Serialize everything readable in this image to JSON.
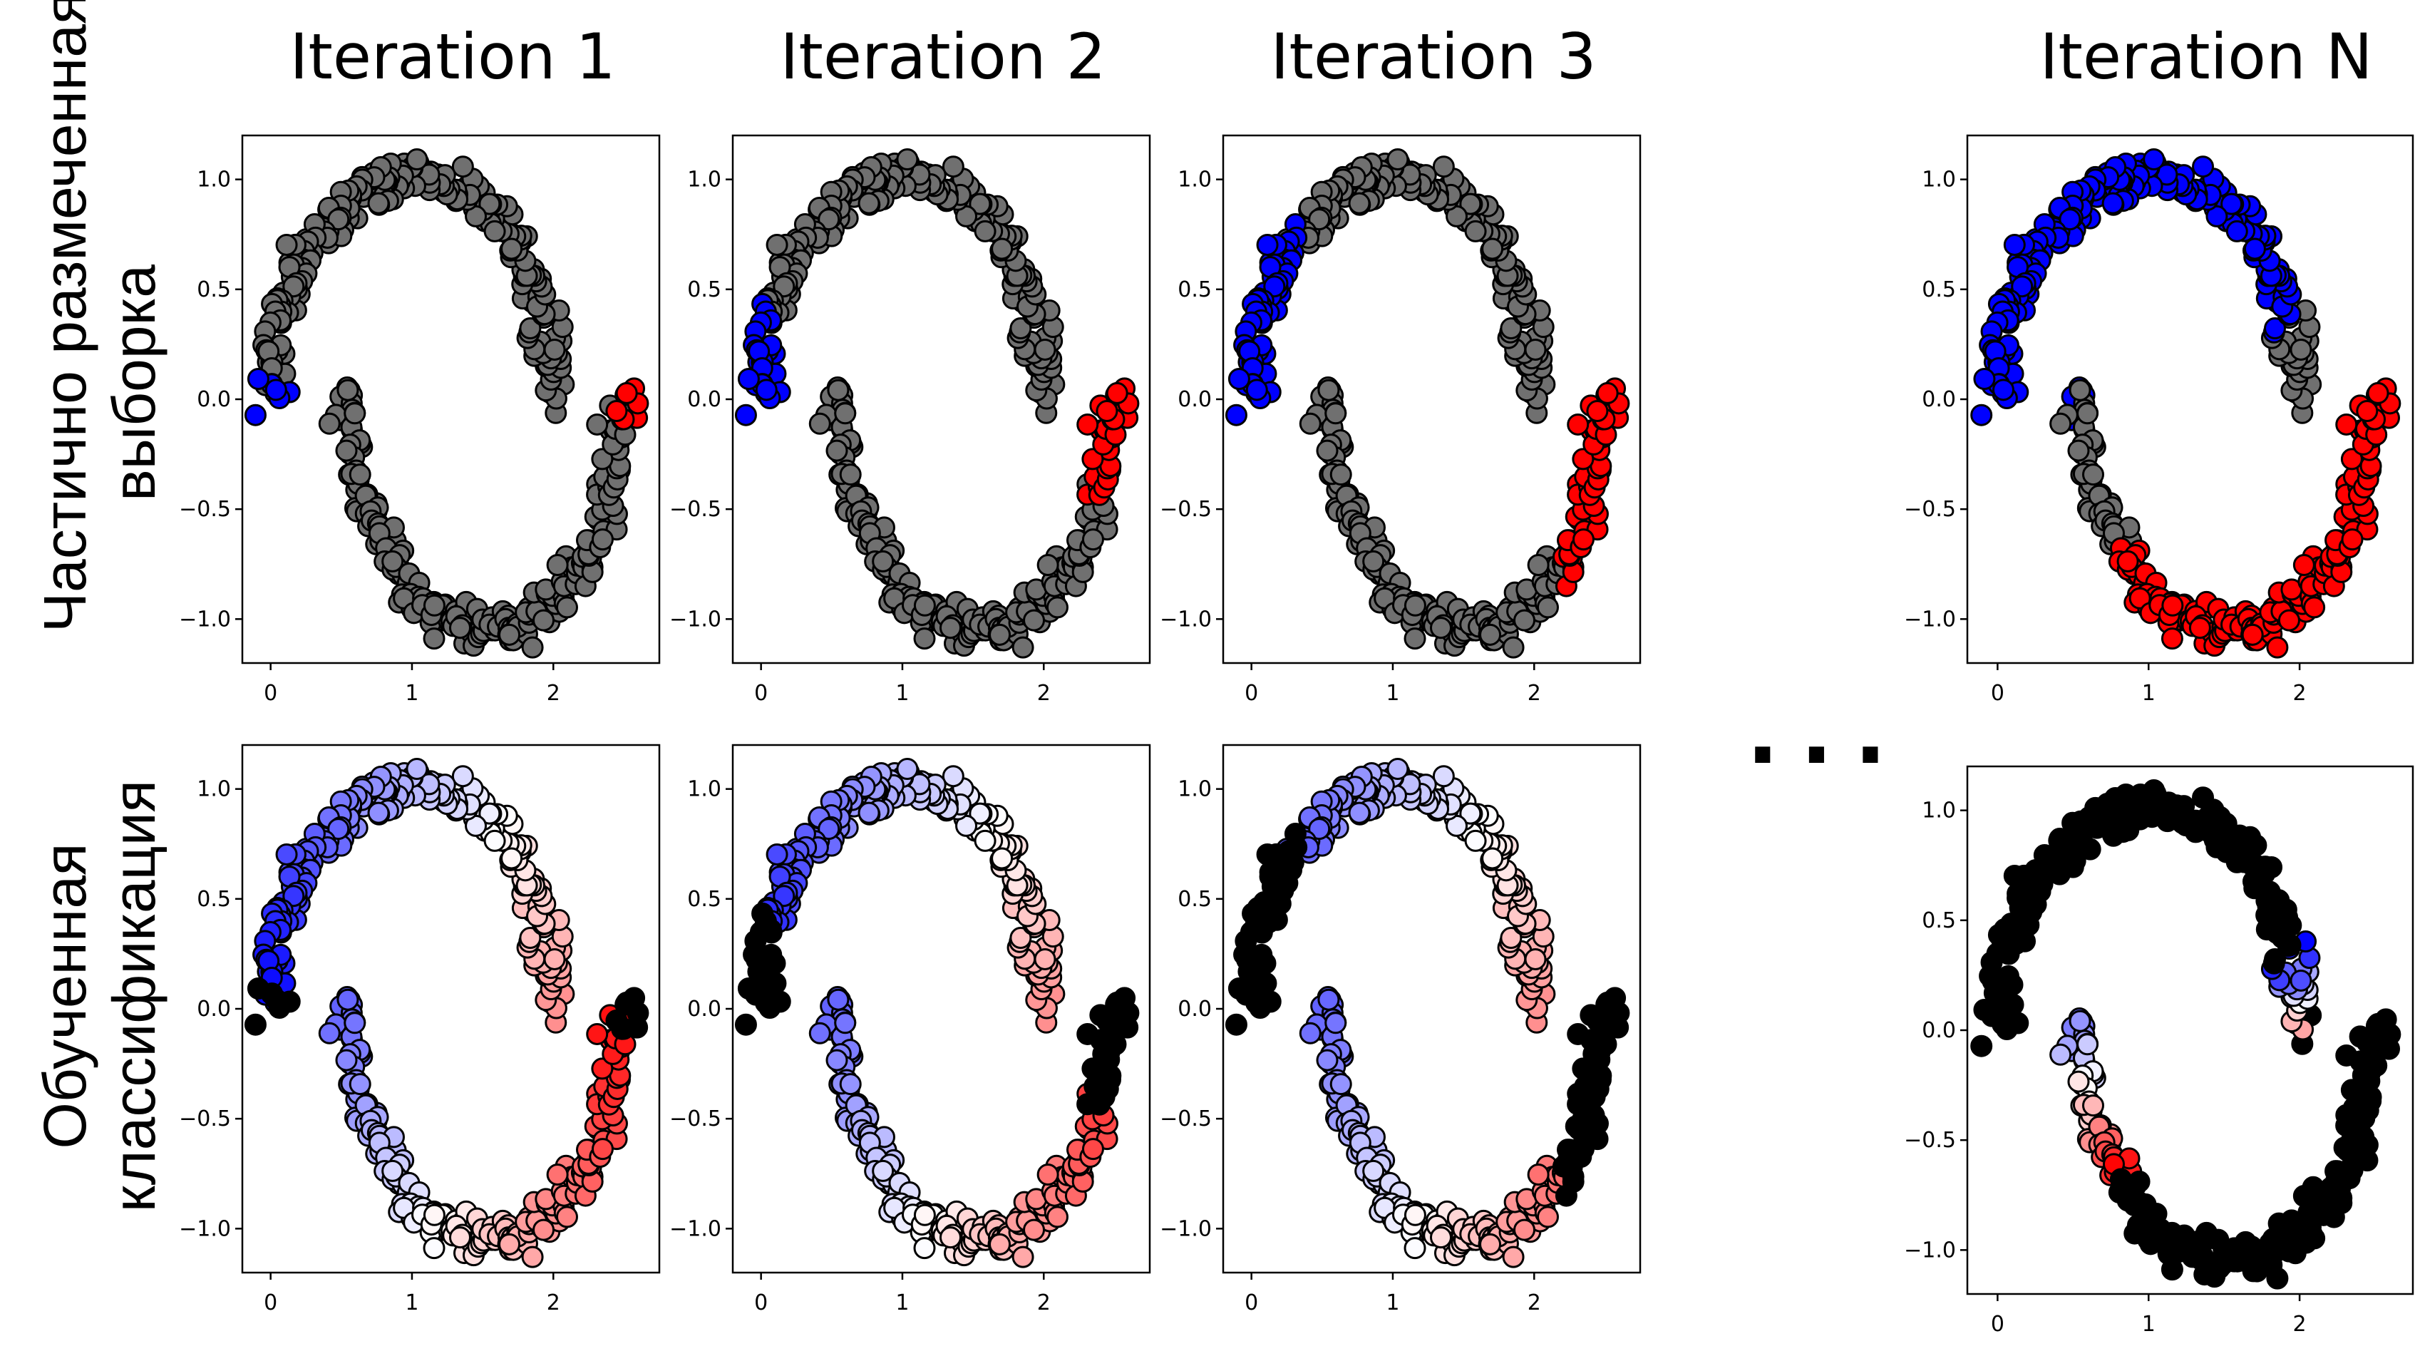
{
  "column_titles": [
    "Iteration 1",
    "Iteration 2",
    "Iteration 3",
    "Iteration N"
  ],
  "row_labels": {
    "top_line1": "Частично размеченная",
    "top_line2": "выборка",
    "bottom_line1": "Обученная",
    "bottom_line2": "классификация"
  },
  "ellipsis": "...",
  "colors": {
    "unlabeled": "#707070",
    "class_blue": "#0000ff",
    "class_red": "#ff0000",
    "uncertain": "#000000",
    "marker_edge": "#000000"
  },
  "chart_data": [
    {
      "type": "scatter",
      "row": "labeled",
      "iteration": "Iteration 1",
      "xlim": [
        -0.2,
        2.75
      ],
      "ylim": [
        -1.2,
        1.2
      ],
      "xticks": [
        "0",
        "1",
        "2"
      ],
      "yticks": [
        "1.0",
        "0.5",
        "0.0",
        "−0.5",
        "−1.0"
      ],
      "grid": false,
      "upper_moon": {
        "blue_t": [
          0.97,
          1.0
        ],
        "red_t": []
      },
      "lower_moon": {
        "blue_t": [],
        "red_t": [
          0.97,
          1.0
        ]
      },
      "coloring": "labels"
    },
    {
      "type": "scatter",
      "row": "labeled",
      "iteration": "Iteration 2",
      "xlim": [
        -0.2,
        2.75
      ],
      "ylim": [
        -1.2,
        1.2
      ],
      "xticks": [
        "0",
        "1",
        "2"
      ],
      "yticks": [
        "1.0",
        "0.5",
        "0.0",
        "−0.5",
        "−1.0"
      ],
      "grid": false,
      "upper_moon": {
        "blue_t": [
          0.88,
          1.0
        ],
        "red_t": []
      },
      "lower_moon": {
        "blue_t": [],
        "red_t": [
          0.86,
          1.0
        ]
      },
      "coloring": "labels"
    },
    {
      "type": "scatter",
      "row": "labeled",
      "iteration": "Iteration 3",
      "xlim": [
        -0.2,
        2.75
      ],
      "ylim": [
        -1.2,
        1.2
      ],
      "xticks": [
        "0",
        "1",
        "2"
      ],
      "yticks": [
        "1.0",
        "0.5",
        "0.0",
        "−0.5",
        "−1.0"
      ],
      "grid": false,
      "upper_moon": {
        "blue_t": [
          0.74,
          1.0
        ],
        "red_t": []
      },
      "lower_moon": {
        "blue_t": [],
        "red_t": [
          0.74,
          1.0
        ]
      },
      "coloring": "labels"
    },
    {
      "type": "scatter",
      "row": "labeled",
      "iteration": "Iteration N",
      "xlim": [
        -0.2,
        2.75
      ],
      "ylim": [
        -1.2,
        1.2
      ],
      "xticks": [
        "0",
        "1",
        "2"
      ],
      "yticks": [
        "1.0",
        "0.5",
        "0.0",
        "−0.5",
        "−1.0"
      ],
      "grid": false,
      "upper_moon": {
        "blue_t": [
          0.12,
          1.0
        ],
        "red_t": []
      },
      "lower_moon": {
        "blue_t": [
          0.0,
          0.02
        ],
        "red_t": [
          0.24,
          1.0
        ]
      },
      "coloring": "labels"
    },
    {
      "type": "scatter",
      "row": "classified",
      "iteration": "Iteration 1",
      "xlim": [
        -0.2,
        2.75
      ],
      "ylim": [
        -1.2,
        1.2
      ],
      "xticks": [
        "0",
        "1",
        "2"
      ],
      "yticks": [
        "1.0",
        "0.5",
        "0.0",
        "−0.5",
        "−1.0"
      ],
      "grid": false,
      "black_t": {
        "upper": [
          0.97,
          1.0
        ],
        "lower": [
          0.97,
          1.0
        ]
      },
      "coloring": "gradient"
    },
    {
      "type": "scatter",
      "row": "classified",
      "iteration": "Iteration 2",
      "xlim": [
        -0.2,
        2.75
      ],
      "ylim": [
        -1.2,
        1.2
      ],
      "xticks": [
        "0",
        "1",
        "2"
      ],
      "yticks": [
        "1.0",
        "0.5",
        "0.0",
        "−0.5",
        "−1.0"
      ],
      "grid": false,
      "black_t": {
        "upper": [
          0.88,
          1.0
        ],
        "lower": [
          0.86,
          1.0
        ]
      },
      "coloring": "gradient"
    },
    {
      "type": "scatter",
      "row": "classified",
      "iteration": "Iteration 3",
      "xlim": [
        -0.2,
        2.75
      ],
      "ylim": [
        -1.2,
        1.2
      ],
      "xticks": [
        "0",
        "1",
        "2"
      ],
      "yticks": [
        "1.0",
        "0.5",
        "0.0",
        "−0.5",
        "−1.0"
      ],
      "grid": false,
      "black_t": {
        "upper": [
          0.74,
          1.0
        ],
        "lower": [
          0.74,
          1.0
        ]
      },
      "coloring": "gradient"
    },
    {
      "type": "scatter",
      "row": "classified",
      "iteration": "Iteration N",
      "xlim": [
        -0.2,
        2.75
      ],
      "ylim": [
        -1.2,
        1.2
      ],
      "xticks": [
        "0",
        "1",
        "2"
      ],
      "yticks": [
        "1.0",
        "0.5",
        "0.0",
        "−0.5",
        "−1.0"
      ],
      "grid": false,
      "coloring": "final",
      "color_band": {
        "upper_t": [
          0.12,
          0.01
        ],
        "lower_t": [
          0.0,
          0.24
        ]
      }
    }
  ]
}
